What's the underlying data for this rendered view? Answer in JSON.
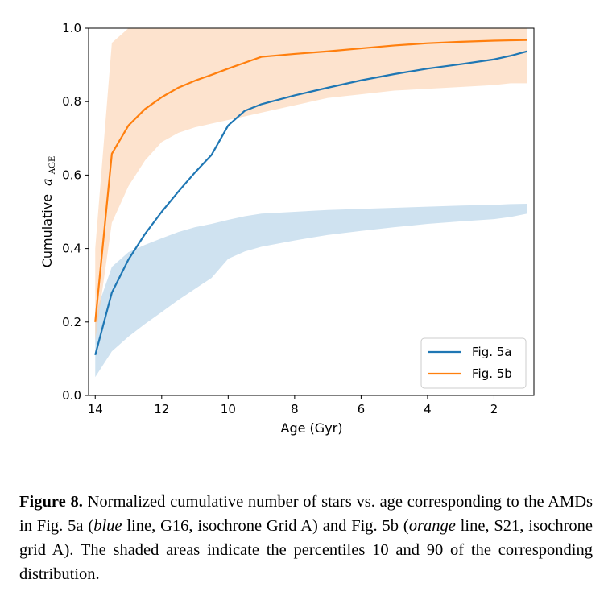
{
  "chart_data": {
    "type": "line",
    "xlabel": "Age (Gyr)",
    "ylabel": "Cumulative",
    "ylabel_math_symbol": "a",
    "ylabel_math_subscript": "AGE",
    "xlim": [
      14.2,
      0.8
    ],
    "ylim": [
      0.0,
      1.0
    ],
    "x_reversed": true,
    "xticks": [
      14,
      12,
      10,
      8,
      6,
      4,
      2
    ],
    "yticks": [
      "0.0",
      "0.2",
      "0.4",
      "0.6",
      "0.8",
      "1.0"
    ],
    "grid": false,
    "legend_position": "lower-right",
    "series": [
      {
        "name": "Fig. 5a",
        "color": "#1f77b4",
        "band_color": "#cfe2f0",
        "x": [
          14,
          13.5,
          13,
          12.5,
          12,
          11.5,
          11,
          10.5,
          10,
          9.5,
          9,
          8,
          7,
          6,
          5,
          4,
          3,
          2,
          1.5,
          1
        ],
        "values": [
          0.11,
          0.28,
          0.37,
          0.44,
          0.5,
          0.555,
          0.607,
          0.655,
          0.735,
          0.775,
          0.793,
          0.817,
          0.838,
          0.858,
          0.875,
          0.89,
          0.902,
          0.915,
          0.925,
          0.937
        ],
        "p10": [
          0.05,
          0.12,
          0.16,
          0.195,
          0.227,
          0.26,
          0.29,
          0.32,
          0.372,
          0.392,
          0.405,
          0.422,
          0.437,
          0.448,
          0.458,
          0.467,
          0.474,
          0.48,
          0.486,
          0.495
        ],
        "p90": [
          0.22,
          0.35,
          0.39,
          0.41,
          0.428,
          0.445,
          0.458,
          0.467,
          0.478,
          0.488,
          0.495,
          0.5,
          0.505,
          0.508,
          0.511,
          0.514,
          0.517,
          0.519,
          0.521,
          0.522
        ]
      },
      {
        "name": "Fig. 5b",
        "color": "#ff7f0e",
        "band_color": "#fde0c8",
        "x": [
          14,
          13.5,
          13,
          12.5,
          12,
          11.5,
          11,
          10.5,
          10,
          9.5,
          9,
          8,
          7,
          6,
          5,
          4,
          3,
          2,
          1.5,
          1
        ],
        "values": [
          0.2,
          0.658,
          0.735,
          0.78,
          0.812,
          0.838,
          0.857,
          0.873,
          0.89,
          0.906,
          0.922,
          0.93,
          0.937,
          0.945,
          0.953,
          0.959,
          0.963,
          0.966,
          0.967,
          0.968
        ],
        "p10": [
          0.15,
          0.47,
          0.57,
          0.64,
          0.69,
          0.715,
          0.73,
          0.74,
          0.75,
          0.76,
          0.77,
          0.79,
          0.81,
          0.82,
          0.83,
          0.835,
          0.84,
          0.845,
          0.85,
          0.85
        ],
        "p90": [
          0.4,
          0.96,
          1.0,
          1.0,
          1.0,
          1.0,
          1.0,
          1.0,
          1.0,
          1.0,
          1.0,
          1.0,
          1.0,
          1.0,
          1.0,
          1.0,
          1.0,
          1.0,
          1.0,
          1.0
        ]
      }
    ]
  },
  "caption": {
    "label": "Figure 8.",
    "part1": " Normalized cumulative number of stars vs. age corresponding to the AMDs in Fig. 5a (",
    "italic1": "blue",
    "part2": " line, G16, isochrone Grid A) and Fig. 5b (",
    "italic2": "orange",
    "part3": " line, S21, isochrone grid A). The shaded areas indicate the percentiles 10 and 90 of the corresponding distribution."
  }
}
